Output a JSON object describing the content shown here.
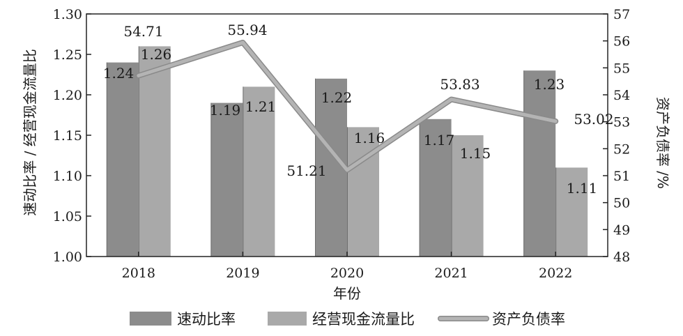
{
  "chart_data": {
    "type": "bar",
    "categories": [
      "2018",
      "2019",
      "2020",
      "2021",
      "2022"
    ],
    "xlabel": "年份",
    "ylabel_left": "速动比率 / 经营现金流量比",
    "ylabel_right": "资产负债率 /%",
    "ylim_left": [
      1.0,
      1.3
    ],
    "ylim_right": [
      48,
      57
    ],
    "yticks_left": [
      "1.00",
      "1.05",
      "1.10",
      "1.15",
      "1.20",
      "1.25",
      "1.30"
    ],
    "yticks_right": [
      "48",
      "49",
      "50",
      "51",
      "52",
      "53",
      "54",
      "55",
      "56",
      "57"
    ],
    "legend_position": "bottom",
    "series": [
      {
        "name": "速动比率",
        "type": "bar",
        "axis": "left",
        "color": "#8c8c8c",
        "values": [
          1.24,
          1.19,
          1.22,
          1.17,
          1.23
        ],
        "labels": [
          "1.24",
          "1.19",
          "1.22",
          "1.17",
          "1.23"
        ]
      },
      {
        "name": "经营现金流量比",
        "type": "bar",
        "axis": "left",
        "color": "#a9a9a9",
        "values": [
          1.26,
          1.21,
          1.16,
          1.15,
          1.11
        ],
        "labels": [
          "1.26",
          "1.21",
          "1.16",
          "1.15",
          "1.11"
        ]
      },
      {
        "name": "资产负债率",
        "type": "line",
        "axis": "right",
        "color": "#b4b4b4",
        "values": [
          54.71,
          55.94,
          51.21,
          53.83,
          53.02
        ],
        "labels": [
          "54.71",
          "55.94",
          "51.21",
          "53.83",
          "53.02"
        ]
      }
    ]
  }
}
